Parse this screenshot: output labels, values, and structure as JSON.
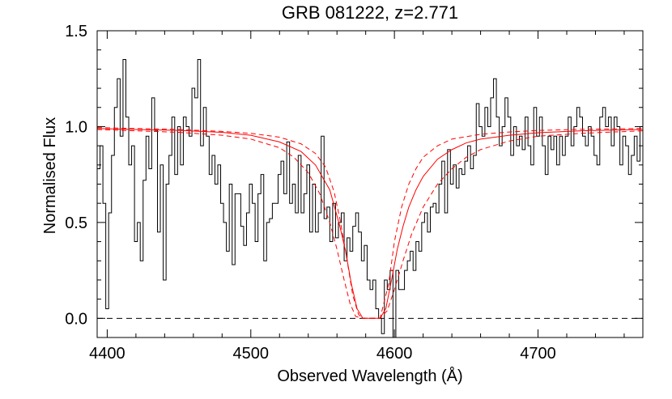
{
  "chart_data": {
    "type": "line",
    "title": "GRB 081222, z=2.771",
    "xlabel": "Observed Wavelength (Å)",
    "ylabel": "Normalised Flux",
    "xlim": [
      4393,
      4773
    ],
    "ylim": [
      -0.1,
      1.5
    ],
    "x_ticks": [
      4400,
      4500,
      4600,
      4700
    ],
    "y_ticks": [
      0.0,
      0.5,
      1.0,
      1.5
    ],
    "y_tick_labels": [
      "0.0",
      "0.5",
      "1.0",
      "1.5"
    ],
    "reference_line": {
      "y": 0.0,
      "style": "dashed"
    },
    "colors": {
      "spectrum": "#000000",
      "fit": "#ff0000",
      "axes": "#000000"
    },
    "series": [
      {
        "style": "step",
        "x_start": 4393,
        "x_step": 2,
        "values": [
          0.78,
          0.9,
          0.6,
          0.05,
          0.55,
          0.85,
          1.1,
          1.25,
          0.95,
          1.35,
          1.05,
          0.8,
          0.9,
          0.4,
          0.5,
          0.3,
          0.72,
          0.95,
          0.78,
          1.15,
          0.98,
          0.45,
          0.8,
          0.2,
          0.7,
          0.85,
          1.05,
          0.75,
          1.0,
          0.8,
          1.05,
          1.0,
          0.95,
          1.2,
          1.15,
          1.35,
          0.9,
          1.1,
          0.95,
          0.75,
          0.85,
          0.7,
          0.8,
          0.6,
          0.5,
          0.35,
          0.7,
          0.28,
          0.65,
          0.65,
          0.48,
          0.38,
          0.55,
          0.7,
          0.6,
          0.4,
          0.65,
          0.75,
          0.3,
          0.5,
          0.52,
          0.6,
          0.6,
          0.75,
          0.82,
          0.65,
          0.92,
          0.6,
          0.7,
          0.55,
          0.85,
          0.55,
          0.65,
          0.8,
          0.45,
          0.7,
          0.45,
          0.55,
          0.95,
          0.52,
          0.58,
          0.4,
          0.6,
          0.42,
          0.5,
          0.55,
          0.3,
          0.42,
          0.35,
          0.48,
          0.55,
          0.45,
          0.3,
          0.38,
          0.2,
          0.15,
          0.2,
          0.05,
          0.0,
          -0.08,
          0.2,
          0.15,
          0.25,
          -0.1,
          0.25,
          0.15,
          0.15,
          0.25,
          0.3,
          0.35,
          0.25,
          0.4,
          0.35,
          0.5,
          0.55,
          0.45,
          0.58,
          0.6,
          0.55,
          0.7,
          0.82,
          0.55,
          0.88,
          0.7,
          0.8,
          0.68,
          0.78,
          0.75,
          0.82,
          0.9,
          0.78,
          0.85,
          1.12,
          1.0,
          0.95,
          1.1,
          1.0,
          1.15,
          1.25,
          1.05,
          0.9,
          1.0,
          1.15,
          1.05,
          0.85,
          1.0,
          0.9,
          0.95,
          0.88,
          1.05,
          0.9,
          0.8,
          1.1,
          0.95,
          1.05,
          0.9,
          0.75,
          0.95,
          0.88,
          0.95,
          0.8,
          0.95,
          0.85,
          0.95,
          1.05,
          0.9,
          1.0,
          1.1,
          1.05,
          0.95,
          0.9,
          1.0,
          0.95,
          0.85,
          0.8,
          1.05,
          1.1,
          1.0,
          1.05,
          0.9,
          1.05,
          1.0,
          0.8,
          0.95,
          0.9,
          0.75,
          0.85,
          0.95,
          0.82,
          1.0,
          0.9,
          0.8,
          0.95
        ]
      },
      {
        "style": "solid",
        "x": [
          4393,
          4420,
          4450,
          4480,
          4500,
          4520,
          4535,
          4545,
          4555,
          4562,
          4566,
          4570,
          4574,
          4578,
          4583,
          4590,
          4594,
          4598,
          4602,
          4606,
          4610,
          4615,
          4620,
          4630,
          4640,
          4650,
          4660,
          4680,
          4700,
          4730,
          4773
        ],
        "values": [
          0.99,
          0.985,
          0.98,
          0.97,
          0.955,
          0.92,
          0.87,
          0.8,
          0.67,
          0.48,
          0.35,
          0.18,
          0.05,
          0.0,
          0.0,
          0.0,
          0.05,
          0.2,
          0.36,
          0.48,
          0.58,
          0.67,
          0.74,
          0.83,
          0.88,
          0.915,
          0.935,
          0.955,
          0.968,
          0.978,
          0.985
        ]
      },
      {
        "style": "dashed",
        "x": [
          4393,
          4420,
          4450,
          4480,
          4500,
          4520,
          4535,
          4545,
          4552,
          4558,
          4562,
          4566,
          4571,
          4575,
          4578,
          4583,
          4590,
          4596,
          4600,
          4605,
          4610,
          4615,
          4620,
          4630,
          4640,
          4660,
          4680,
          4700,
          4730,
          4773
        ],
        "values": [
          0.995,
          0.99,
          0.985,
          0.975,
          0.965,
          0.945,
          0.91,
          0.86,
          0.79,
          0.66,
          0.52,
          0.35,
          0.12,
          0.02,
          0.0,
          0.0,
          0.0,
          0.18,
          0.4,
          0.58,
          0.7,
          0.78,
          0.84,
          0.9,
          0.935,
          0.96,
          0.972,
          0.98,
          0.986,
          0.99
        ]
      },
      {
        "style": "dashed",
        "x": [
          4393,
          4420,
          4450,
          4480,
          4500,
          4520,
          4530,
          4540,
          4548,
          4555,
          4560,
          4565,
          4569,
          4573,
          4578,
          4583,
          4590,
          4595,
          4600,
          4606,
          4612,
          4620,
          4630,
          4640,
          4650,
          4660,
          4680,
          4700,
          4730,
          4773
        ],
        "values": [
          0.985,
          0.978,
          0.97,
          0.955,
          0.935,
          0.89,
          0.84,
          0.76,
          0.65,
          0.5,
          0.36,
          0.2,
          0.08,
          0.01,
          0.0,
          0.0,
          0.0,
          0.04,
          0.15,
          0.3,
          0.44,
          0.58,
          0.7,
          0.78,
          0.84,
          0.88,
          0.925,
          0.95,
          0.965,
          0.978
        ]
      }
    ]
  }
}
